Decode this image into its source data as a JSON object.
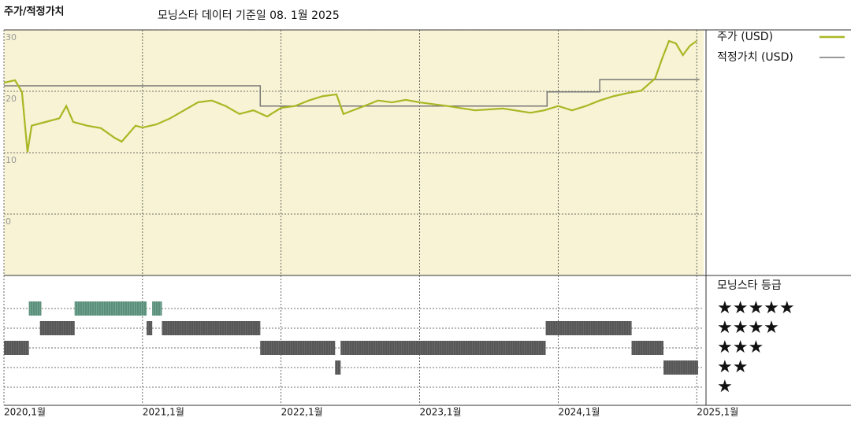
{
  "chart_data": {
    "type": "line",
    "title": "주가/적정가치",
    "subtitle": "모닝스타 데이터 기준일 08. 1월 2025",
    "xlim": [
      2020,
      2025.05
    ],
    "xticks": [
      {
        "value": 2020,
        "label": "2020,1월"
      },
      {
        "value": 2021,
        "label": "2021,1월"
      },
      {
        "value": 2022,
        "label": "2022,1월"
      },
      {
        "value": 2023,
        "label": "2023,1월"
      },
      {
        "value": 2024,
        "label": "2024,1월"
      },
      {
        "value": 2025,
        "label": "2025,1월"
      }
    ],
    "ylim": [
      -10,
      30
    ],
    "yticks": [
      0,
      10,
      20,
      30
    ],
    "grid": true,
    "plot_background": "#f7f3d4",
    "series": [
      {
        "name": "주가 (USD)",
        "color": "#a9b724",
        "x": [
          2020.0,
          2020.08,
          2020.13,
          2020.17,
          2020.2,
          2020.3,
          2020.4,
          2020.45,
          2020.5,
          2020.6,
          2020.7,
          2020.8,
          2020.85,
          2020.95,
          2021.0,
          2021.1,
          2021.2,
          2021.3,
          2021.4,
          2021.5,
          2021.6,
          2021.7,
          2021.8,
          2021.9,
          2022.0,
          2022.1,
          2022.2,
          2022.3,
          2022.4,
          2022.45,
          2022.6,
          2022.7,
          2022.8,
          2022.9,
          2023.0,
          2023.2,
          2023.4,
          2023.6,
          2023.8,
          2023.9,
          2024.0,
          2024.1,
          2024.2,
          2024.3,
          2024.4,
          2024.5,
          2024.6,
          2024.7,
          2024.75,
          2024.8,
          2024.85,
          2024.9,
          2024.95,
          2025.0
        ],
        "values": [
          21.4,
          21.8,
          19.9,
          10.1,
          14.4,
          15.0,
          15.6,
          17.6,
          15.0,
          14.4,
          14.0,
          12.4,
          11.8,
          14.4,
          14.1,
          14.6,
          15.6,
          16.9,
          18.2,
          18.5,
          17.6,
          16.3,
          16.9,
          15.9,
          17.3,
          17.6,
          18.5,
          19.2,
          19.5,
          16.3,
          17.6,
          18.5,
          18.2,
          18.6,
          18.2,
          17.6,
          16.9,
          17.2,
          16.5,
          16.9,
          17.6,
          16.9,
          17.6,
          18.5,
          19.2,
          19.7,
          20.1,
          22.1,
          25.3,
          28.2,
          27.8,
          25.9,
          27.4,
          28.2
        ]
      },
      {
        "name": "적정가치 (USD)",
        "color": "#777777",
        "x": [
          2020.0,
          2021.85,
          2021.85,
          2023.92,
          2023.92,
          2024.3,
          2024.3,
          2025.02
        ],
        "values": [
          20.9,
          20.9,
          17.6,
          17.6,
          19.9,
          19.9,
          21.9,
          21.9
        ]
      }
    ],
    "rating": {
      "title": "모닝스타 등급",
      "levels": [
        5,
        4,
        3,
        2,
        1
      ],
      "labels": [
        "★★★★★",
        "★★★★",
        "★★★",
        "★★",
        "★"
      ],
      "top_color": "#3d8a6c",
      "color": "#333333",
      "periods": [
        {
          "start": 2020.0,
          "end": 2020.18,
          "stars": 3
        },
        {
          "start": 2020.18,
          "end": 2020.27,
          "stars": 5
        },
        {
          "start": 2020.26,
          "end": 2020.51,
          "stars": 4
        },
        {
          "start": 2020.51,
          "end": 2021.03,
          "stars": 5
        },
        {
          "start": 2021.03,
          "end": 2021.07,
          "stars": 4
        },
        {
          "start": 2021.07,
          "end": 2021.14,
          "stars": 5
        },
        {
          "start": 2021.14,
          "end": 2021.85,
          "stars": 4
        },
        {
          "start": 2021.85,
          "end": 2022.39,
          "stars": 3
        },
        {
          "start": 2022.39,
          "end": 2022.43,
          "stars": 2
        },
        {
          "start": 2022.43,
          "end": 2023.91,
          "stars": 3
        },
        {
          "start": 2023.91,
          "end": 2024.53,
          "stars": 4
        },
        {
          "start": 2024.53,
          "end": 2024.76,
          "stars": 3
        },
        {
          "start": 2024.76,
          "end": 2025.01,
          "stars": 2
        }
      ]
    }
  }
}
